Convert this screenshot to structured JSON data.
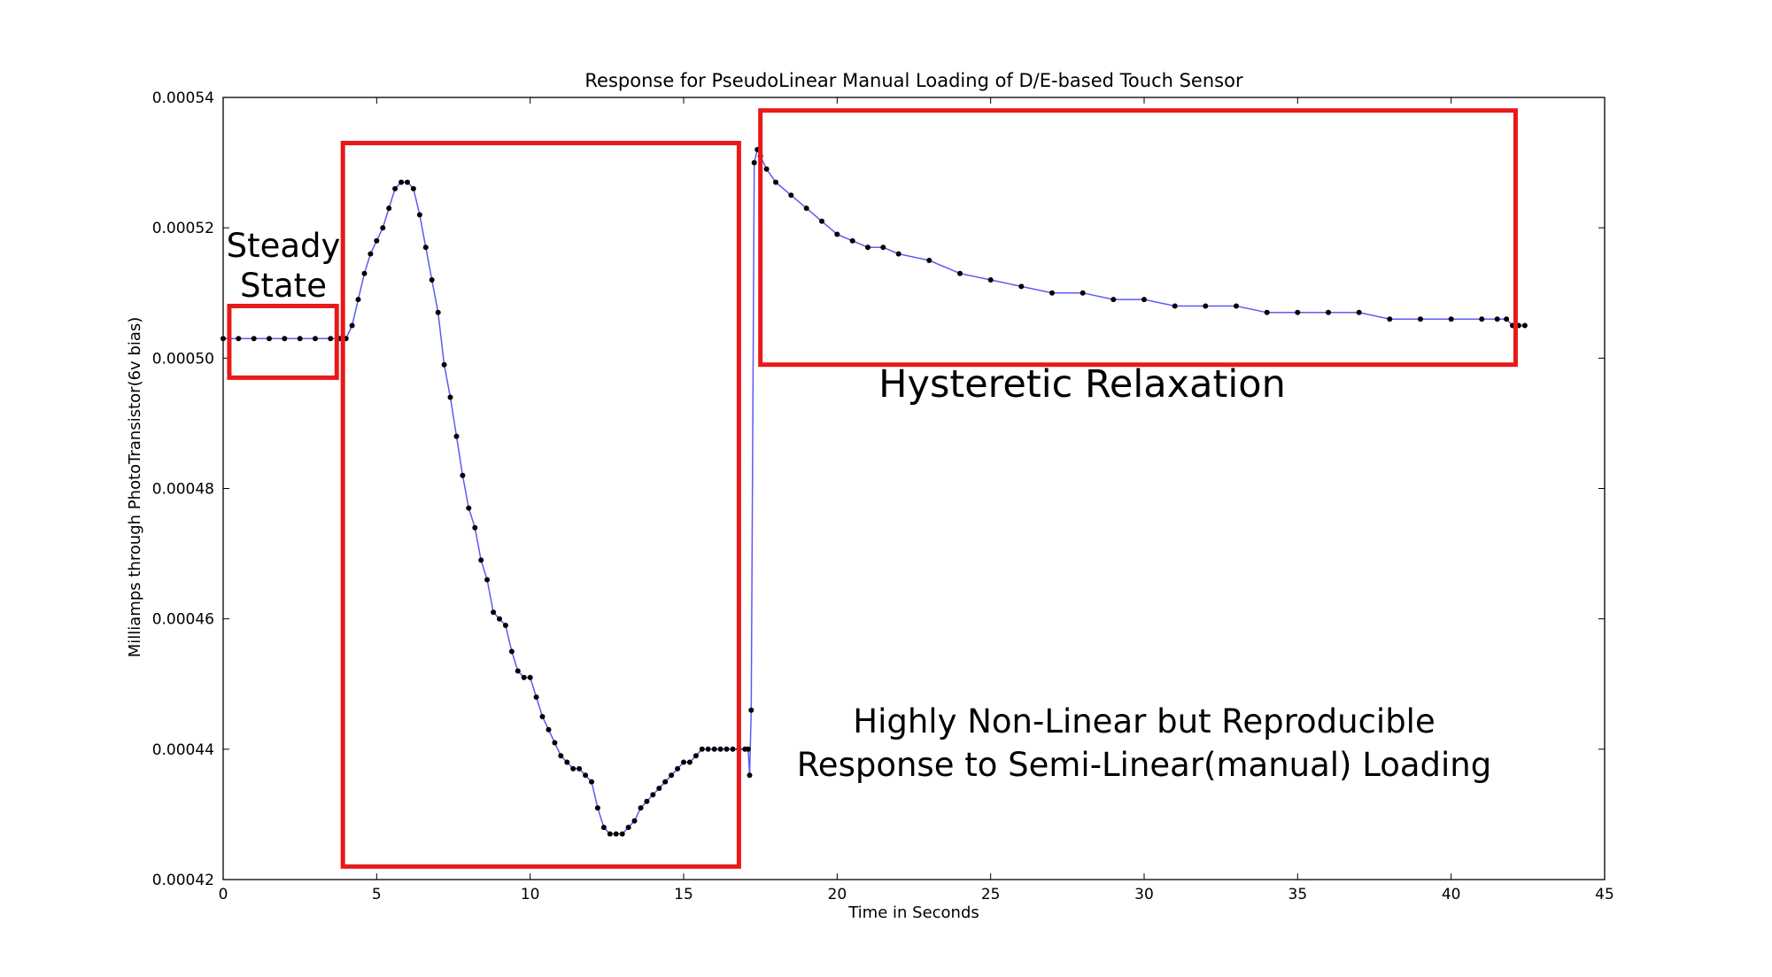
{
  "chart_data": {
    "type": "line",
    "title": "Response for PseudoLinear Manual Loading of D/E-based Touch Sensor",
    "xlabel": "Time in Seconds",
    "ylabel": "Milliamps through PhotoTransistor(6v bias)",
    "xlim": [
      0,
      45
    ],
    "ylim": [
      0.00042,
      0.00054
    ],
    "xticks": [
      0,
      5,
      10,
      15,
      20,
      25,
      30,
      35,
      40,
      45
    ],
    "xtick_labels": [
      "0",
      "5",
      "10",
      "15",
      "20",
      "25",
      "30",
      "35",
      "40",
      "45"
    ],
    "yticks": [
      0.00042,
      0.00044,
      0.00046,
      0.00048,
      0.0005,
      0.00052,
      0.00054
    ],
    "ytick_labels": [
      "0.00042",
      "0.00044",
      "0.00046",
      "0.00048",
      "0.00050",
      "0.00052",
      "0.00054"
    ],
    "grid": false,
    "series": [
      {
        "color": "#5b5bf5",
        "marker_color": "#000000",
        "x": [
          0,
          0.5,
          1,
          1.5,
          2,
          2.5,
          3,
          3.5,
          3.8,
          4.0,
          4.2,
          4.4,
          4.6,
          4.8,
          5.0,
          5.2,
          5.4,
          5.6,
          5.8,
          6.0,
          6.2,
          6.4,
          6.6,
          6.8,
          7.0,
          7.2,
          7.4,
          7.6,
          7.8,
          8.0,
          8.2,
          8.4,
          8.6,
          8.8,
          9.0,
          9.2,
          9.4,
          9.6,
          9.8,
          10.0,
          10.2,
          10.4,
          10.6,
          10.8,
          11.0,
          11.2,
          11.4,
          11.6,
          11.8,
          12.0,
          12.2,
          12.4,
          12.6,
          12.8,
          13.0,
          13.2,
          13.4,
          13.6,
          13.8,
          14.0,
          14.2,
          14.4,
          14.6,
          14.8,
          15.0,
          15.2,
          15.4,
          15.6,
          15.8,
          16.0,
          16.2,
          16.4,
          16.6,
          16.8,
          17.0,
          17.1,
          17.15,
          17.2,
          17.3,
          17.4,
          17.5,
          17.7,
          18.0,
          18.5,
          19,
          19.5,
          20,
          20.5,
          21,
          21.5,
          22,
          23,
          24,
          25,
          26,
          27,
          28,
          29,
          30,
          31,
          32,
          33,
          34,
          35,
          36,
          37,
          38,
          39,
          40,
          41,
          41.5,
          41.8,
          42.0,
          42.2,
          42.4
        ],
        "y": [
          0.000503,
          0.000503,
          0.000503,
          0.000503,
          0.000503,
          0.000503,
          0.000503,
          0.000503,
          0.000503,
          0.000503,
          0.000505,
          0.000509,
          0.000513,
          0.000516,
          0.000518,
          0.00052,
          0.000523,
          0.000526,
          0.000527,
          0.000527,
          0.000526,
          0.000522,
          0.000517,
          0.000512,
          0.000507,
          0.000499,
          0.000494,
          0.000488,
          0.000482,
          0.000477,
          0.000474,
          0.000469,
          0.000466,
          0.000461,
          0.00046,
          0.000459,
          0.000455,
          0.000452,
          0.000451,
          0.000451,
          0.000448,
          0.000445,
          0.000443,
          0.000441,
          0.000439,
          0.000438,
          0.000437,
          0.000437,
          0.000436,
          0.000435,
          0.000431,
          0.000428,
          0.000427,
          0.000427,
          0.000427,
          0.000428,
          0.000429,
          0.000431,
          0.000432,
          0.000433,
          0.000434,
          0.000435,
          0.000436,
          0.000437,
          0.000438,
          0.000438,
          0.000439,
          0.00044,
          0.00044,
          0.00044,
          0.00044,
          0.00044,
          0.00044,
          0.00044,
          0.00044,
          0.00044,
          0.000436,
          0.000446,
          0.00053,
          0.000532,
          0.000531,
          0.000529,
          0.000527,
          0.000525,
          0.000523,
          0.000521,
          0.000519,
          0.000518,
          0.000517,
          0.000517,
          0.000516,
          0.000515,
          0.000513,
          0.000512,
          0.000511,
          0.00051,
          0.00051,
          0.000509,
          0.000509,
          0.000508,
          0.000508,
          0.000508,
          0.000507,
          0.000507,
          0.000507,
          0.000507,
          0.000506,
          0.000506,
          0.000506,
          0.000506,
          0.000506,
          0.000506,
          0.000505,
          0.000505,
          0.000505
        ]
      }
    ],
    "annotations": [
      {
        "lines": [
          "Steady",
          "State"
        ]
      },
      {
        "lines": [
          "Hysteretic Relaxation"
        ]
      },
      {
        "lines": [
          "Highly Non-Linear but Reproducible",
          "Response to Semi-Linear(manual) Loading"
        ]
      }
    ],
    "highlight_boxes": [
      {
        "x0": 0.2,
        "x1": 3.7,
        "y0": 0.000497,
        "y1": 0.000508,
        "color": "#e8191a"
      },
      {
        "x0": 3.9,
        "x1": 16.8,
        "y0": 0.000422,
        "y1": 0.000533,
        "color": "#e8191a"
      },
      {
        "x0": 17.5,
        "x1": 42.1,
        "y0": 0.000499,
        "y1": 0.000538,
        "color": "#e8191a"
      }
    ]
  }
}
